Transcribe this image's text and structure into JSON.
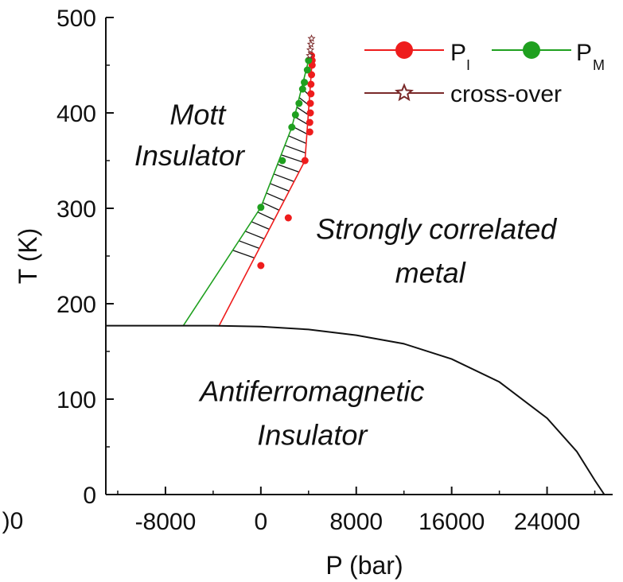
{
  "chart_data": {
    "type": "scatter",
    "xlabel": "P (bar)",
    "ylabel": "T (K)",
    "xlim": [
      -13000,
      29500
    ],
    "ylim": [
      0,
      500
    ],
    "x_ticks": [
      -8000,
      0,
      8000,
      16000,
      24000
    ],
    "x_tick_labels": [
      "-8000",
      "0",
      "8000",
      "16000",
      "24000"
    ],
    "x_edge_label": ")0",
    "y_ticks": [
      0,
      100,
      200,
      300,
      400,
      500
    ],
    "y_tick_labels": [
      "0",
      "100",
      "200",
      "300",
      "400",
      "500"
    ],
    "grid": false,
    "legend": {
      "position": "top-right",
      "entries": [
        {
          "label": "P",
          "subscript": "I",
          "color": "#ee1c1c",
          "marker": "circle"
        },
        {
          "label": "P",
          "subscript": "M",
          "color": "#1fa01f",
          "marker": "circle"
        },
        {
          "label": "cross-over",
          "color": "#7a2a2a",
          "marker": "star"
        }
      ]
    },
    "series": [
      {
        "name": "P_I",
        "color": "#ee1c1c",
        "points": [
          {
            "x": 0,
            "y": 240
          },
          {
            "x": 2300,
            "y": 290
          },
          {
            "x": 3700,
            "y": 350
          },
          {
            "x": 4100,
            "y": 380
          },
          {
            "x": 4100,
            "y": 390
          },
          {
            "x": 4150,
            "y": 400
          },
          {
            "x": 4150,
            "y": 410
          },
          {
            "x": 4200,
            "y": 420
          },
          {
            "x": 4200,
            "y": 430
          },
          {
            "x": 4250,
            "y": 440
          },
          {
            "x": 4300,
            "y": 450
          },
          {
            "x": 4300,
            "y": 455
          },
          {
            "x": 4250,
            "y": 460
          }
        ],
        "line": [
          {
            "x": -3500,
            "y": 177
          },
          {
            "x": 3700,
            "y": 350
          },
          {
            "x": 4300,
            "y": 455
          }
        ]
      },
      {
        "name": "P_M",
        "color": "#1fa01f",
        "points": [
          {
            "x": 0,
            "y": 301
          },
          {
            "x": 1800,
            "y": 350
          },
          {
            "x": 2600,
            "y": 385
          },
          {
            "x": 2900,
            "y": 398
          },
          {
            "x": 3200,
            "y": 410
          },
          {
            "x": 3500,
            "y": 425
          },
          {
            "x": 3650,
            "y": 432
          },
          {
            "x": 3900,
            "y": 445
          },
          {
            "x": 4000,
            "y": 455
          }
        ],
        "line": [
          {
            "x": -6500,
            "y": 177
          },
          {
            "x": 0,
            "y": 301
          },
          {
            "x": 2600,
            "y": 385
          },
          {
            "x": 4000,
            "y": 455
          }
        ]
      },
      {
        "name": "cross-over",
        "color": "#7a2a2a",
        "points": [
          {
            "x": 4100,
            "y": 460
          },
          {
            "x": 4150,
            "y": 466
          },
          {
            "x": 4200,
            "y": 472
          },
          {
            "x": 4250,
            "y": 478
          }
        ]
      },
      {
        "name": "AF boundary",
        "color": "#111111",
        "line": [
          {
            "x": -13000,
            "y": 177
          },
          {
            "x": -4000,
            "y": 177
          },
          {
            "x": 0,
            "y": 176
          },
          {
            "x": 4000,
            "y": 173
          },
          {
            "x": 8000,
            "y": 167
          },
          {
            "x": 12000,
            "y": 158
          },
          {
            "x": 16000,
            "y": 142
          },
          {
            "x": 20000,
            "y": 118
          },
          {
            "x": 24000,
            "y": 80
          },
          {
            "x": 26500,
            "y": 45
          },
          {
            "x": 28000,
            "y": 15
          },
          {
            "x": 28800,
            "y": 0
          }
        ]
      }
    ],
    "annotations": [
      {
        "text": "Mott",
        "x": -5300,
        "y": 388
      },
      {
        "text": "Insulator",
        "x": -6000,
        "y": 345
      },
      {
        "text": "Strongly correlated",
        "x": 14700,
        "y": 268
      },
      {
        "text": "metal",
        "x": 14200,
        "y": 222
      },
      {
        "text": "Antiferromagnetic",
        "x": 4300,
        "y": 98
      },
      {
        "text": "Insulator",
        "x": 4300,
        "y": 52
      }
    ]
  }
}
